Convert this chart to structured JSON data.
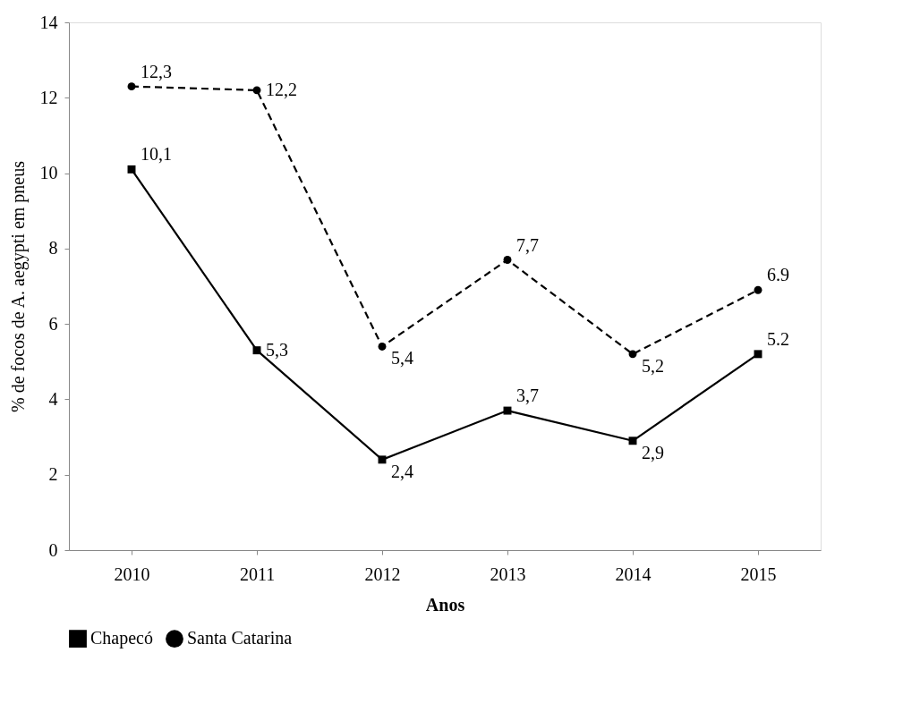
{
  "chart_data": {
    "type": "line",
    "xlabel": "Anos",
    "ylabel": "% de focos de A. aegypti  em pneus",
    "categories": [
      "2010",
      "2011",
      "2012",
      "2013",
      "2014",
      "2015"
    ],
    "series": [
      {
        "name": "Chapecó",
        "color": "#000000",
        "marker": "square",
        "line_style": "solid",
        "values": [
          10.1,
          5.3,
          2.4,
          3.7,
          2.9,
          5.2
        ],
        "value_labels": [
          "10,1",
          "5,3",
          "2,4",
          "3,7",
          "2,9",
          "5.2"
        ]
      },
      {
        "name": "Santa Catarina",
        "color": "#000000",
        "marker": "circle",
        "line_style": "dashed",
        "values": [
          12.3,
          12.2,
          5.4,
          7.7,
          5.2,
          6.9
        ],
        "value_labels": [
          "12,3",
          "12,2",
          "5,4",
          "7,7",
          "5,2",
          "6.9"
        ]
      }
    ],
    "ylim": [
      0,
      14
    ],
    "yticks": [
      0,
      2,
      4,
      6,
      8,
      10,
      12,
      14
    ],
    "grid": false,
    "legend": "bottom"
  }
}
